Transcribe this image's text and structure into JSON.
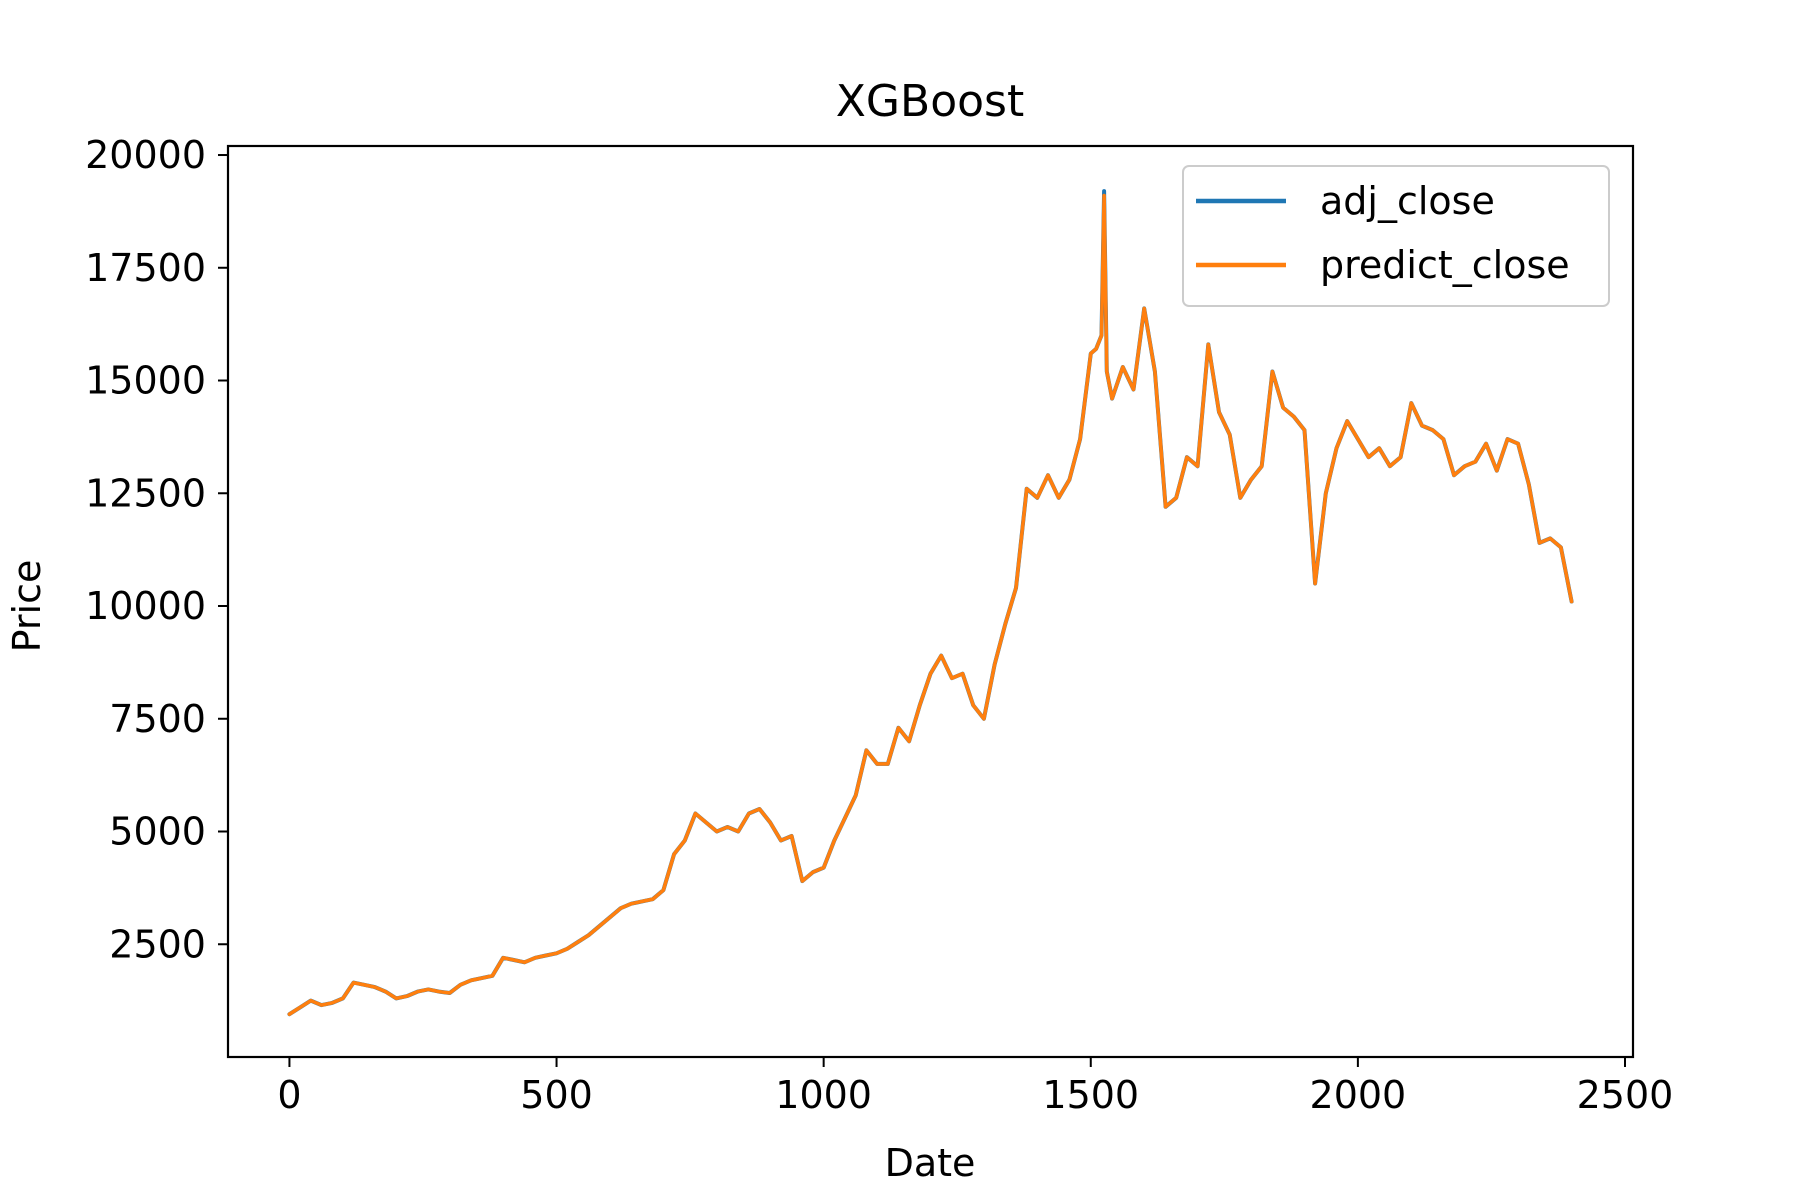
{
  "chart_data": {
    "type": "line",
    "title": "XGBoost",
    "xlabel": "Date",
    "ylabel": "Price",
    "xlim": [
      -115,
      2515
    ],
    "ylim": [
      0,
      20200
    ],
    "xticks": [
      0,
      500,
      1000,
      1500,
      2000,
      2500
    ],
    "yticks": [
      2500,
      5000,
      7500,
      10000,
      12500,
      15000,
      17500,
      20000
    ],
    "grid": false,
    "legend": {
      "placement": "upper right",
      "entries": [
        "adj_close",
        "predict_close"
      ]
    },
    "series": [
      {
        "name": "adj_close",
        "color": "#1f77b4",
        "x": [
          0,
          20,
          40,
          60,
          80,
          100,
          120,
          140,
          160,
          180,
          200,
          220,
          240,
          260,
          280,
          300,
          320,
          340,
          360,
          380,
          400,
          420,
          440,
          460,
          480,
          500,
          520,
          540,
          560,
          580,
          600,
          620,
          640,
          660,
          680,
          700,
          720,
          740,
          760,
          780,
          800,
          820,
          840,
          860,
          880,
          900,
          920,
          940,
          960,
          980,
          1000,
          1020,
          1040,
          1060,
          1080,
          1100,
          1120,
          1140,
          1160,
          1180,
          1200,
          1220,
          1240,
          1260,
          1280,
          1300,
          1320,
          1340,
          1360,
          1380,
          1400,
          1420,
          1440,
          1460,
          1480,
          1500,
          1510,
          1520,
          1525,
          1530,
          1540,
          1560,
          1580,
          1600,
          1620,
          1640,
          1660,
          1680,
          1700,
          1720,
          1740,
          1760,
          1780,
          1800,
          1820,
          1840,
          1860,
          1880,
          1900,
          1920,
          1940,
          1960,
          1980,
          2000,
          2020,
          2040,
          2060,
          2080,
          2100,
          2120,
          2140,
          2160,
          2180,
          2200,
          2220,
          2240,
          2260,
          2280,
          2300,
          2320,
          2340,
          2360,
          2380,
          2400
        ],
        "y": [
          950,
          1100,
          1250,
          1150,
          1200,
          1300,
          1650,
          1600,
          1550,
          1450,
          1300,
          1350,
          1450,
          1500,
          1450,
          1420,
          1600,
          1700,
          1750,
          1800,
          2200,
          2150,
          2100,
          2200,
          2250,
          2300,
          2400,
          2550,
          2700,
          2900,
          3100,
          3300,
          3400,
          3450,
          3500,
          3700,
          4500,
          4800,
          5400,
          5200,
          5000,
          5100,
          5000,
          5400,
          5500,
          5200,
          4800,
          4900,
          3900,
          4100,
          4200,
          4800,
          5300,
          5800,
          6800,
          6500,
          6500,
          7300,
          7000,
          7800,
          8500,
          8900,
          8400,
          8500,
          7800,
          7500,
          8700,
          9600,
          10400,
          12600,
          12400,
          12900,
          12400,
          12800,
          13700,
          15600,
          15700,
          16000,
          19200,
          15200,
          14600,
          15300,
          14800,
          16600,
          15200,
          12200,
          12400,
          13300,
          13100,
          15800,
          14300,
          13800,
          12400,
          12800,
          13100,
          15200,
          14400,
          14200,
          13900,
          10500,
          12500,
          13500,
          14100,
          13700,
          13300,
          13500,
          13100,
          13300,
          14500,
          14000,
          13900,
          13700,
          12900,
          13100,
          13200,
          13600,
          13000,
          13700,
          13600,
          12700,
          11400,
          11500,
          11300,
          10100
        ]
      },
      {
        "name": "predict_close",
        "color": "#ff7f0e",
        "x": [
          0,
          20,
          40,
          60,
          80,
          100,
          120,
          140,
          160,
          180,
          200,
          220,
          240,
          260,
          280,
          300,
          320,
          340,
          360,
          380,
          400,
          420,
          440,
          460,
          480,
          500,
          520,
          540,
          560,
          580,
          600,
          620,
          640,
          660,
          680,
          700,
          720,
          740,
          760,
          780,
          800,
          820,
          840,
          860,
          880,
          900,
          920,
          940,
          960,
          980,
          1000,
          1020,
          1040,
          1060,
          1080,
          1100,
          1120,
          1140,
          1160,
          1180,
          1200,
          1220,
          1240,
          1260,
          1280,
          1300,
          1320,
          1340,
          1360,
          1380,
          1400,
          1420,
          1440,
          1460,
          1480,
          1500,
          1510,
          1520,
          1525,
          1530,
          1540,
          1560,
          1580,
          1600,
          1620,
          1640,
          1660,
          1680,
          1700,
          1720,
          1740,
          1760,
          1780,
          1800,
          1820,
          1840,
          1860,
          1880,
          1900,
          1920,
          1940,
          1960,
          1980,
          2000,
          2020,
          2040,
          2060,
          2080,
          2100,
          2120,
          2140,
          2160,
          2180,
          2200,
          2220,
          2240,
          2260,
          2280,
          2300,
          2320,
          2340,
          2360,
          2380,
          2400
        ],
        "y": [
          950,
          1100,
          1250,
          1150,
          1200,
          1300,
          1650,
          1600,
          1550,
          1450,
          1300,
          1350,
          1450,
          1500,
          1450,
          1420,
          1600,
          1700,
          1750,
          1800,
          2200,
          2150,
          2100,
          2200,
          2250,
          2300,
          2400,
          2550,
          2700,
          2900,
          3100,
          3300,
          3400,
          3450,
          3500,
          3700,
          4500,
          4800,
          5400,
          5200,
          5000,
          5100,
          5000,
          5400,
          5500,
          5200,
          4800,
          4900,
          3900,
          4100,
          4200,
          4800,
          5300,
          5800,
          6800,
          6500,
          6500,
          7300,
          7000,
          7800,
          8500,
          8900,
          8400,
          8500,
          7800,
          7500,
          8700,
          9600,
          10400,
          12600,
          12400,
          12900,
          12400,
          12800,
          13700,
          15600,
          15700,
          16000,
          19100,
          15200,
          14600,
          15300,
          14800,
          16600,
          15200,
          12200,
          12400,
          13300,
          13100,
          15800,
          14300,
          13800,
          12400,
          12800,
          13100,
          15200,
          14400,
          14200,
          13900,
          10500,
          12500,
          13500,
          14100,
          13700,
          13300,
          13500,
          13100,
          13300,
          14500,
          14000,
          13900,
          13700,
          12900,
          13100,
          13200,
          13600,
          13000,
          13700,
          13600,
          12700,
          11400,
          11500,
          11300,
          10100
        ]
      }
    ]
  }
}
